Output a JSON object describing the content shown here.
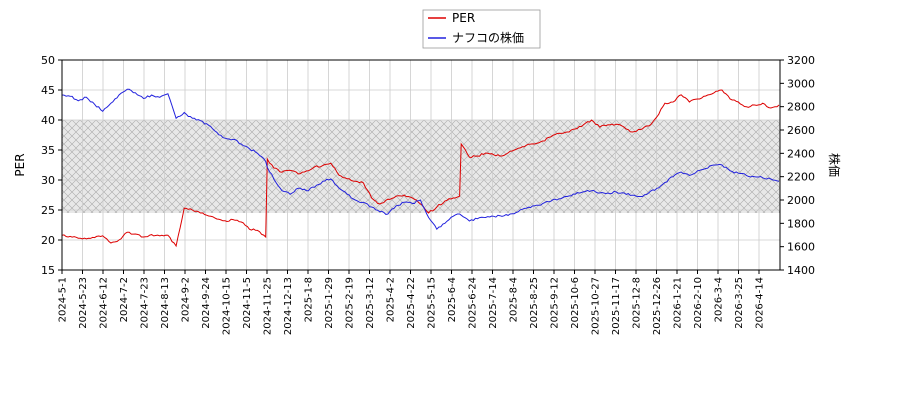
{
  "chart_data": {
    "type": "line",
    "title": "",
    "xlabel": "",
    "ylabel_left": "PER",
    "ylabel_right": "株価",
    "ylim_left": [
      15,
      50
    ],
    "ylim_right": [
      1400,
      3200
    ],
    "yticks_left": [
      "15",
      "20",
      "25",
      "30",
      "35",
      "40",
      "45",
      "50"
    ],
    "yticks_right": [
      "1400",
      "1600",
      "1800",
      "2000",
      "2200",
      "2400",
      "2600",
      "2800",
      "3000",
      "3200"
    ],
    "x_tick_labels": [
      "2024-5-1",
      "2024-5-23",
      "2024-6-12",
      "2024-7-2",
      "2024-7-23",
      "2024-8-13",
      "2024-9-2",
      "2024-9-24",
      "2024-10-15",
      "2024-11-5",
      "2024-11-25",
      "2024-12-13",
      "2025-1-8",
      "2025-1-29",
      "2025-2-19",
      "2025-3-12",
      "2025-4-2",
      "2025-4-22",
      "2025-5-15",
      "2025-6-4",
      "2025-6-24",
      "2025-7-14",
      "2025-8-4",
      "2025-8-25",
      "2025-9-12",
      "2025-10-6",
      "2025-10-27",
      "2025-11-17",
      "2025-12-8",
      "2025-12-26",
      "2026-1-21",
      "2026-2-10",
      "2026-3-4",
      "2026-3-25",
      "2026-4-14"
    ],
    "band": {
      "low": 24.5,
      "high": 40
    },
    "legend_position": "top-center",
    "grid": true,
    "series": [
      {
        "name": "PER",
        "axis": "left",
        "color": "#dd0000",
        "values": [
          [
            0,
            20.8
          ],
          [
            1,
            20.6
          ],
          [
            2,
            20.3
          ],
          [
            3,
            20.2
          ],
          [
            4,
            20.4
          ],
          [
            5,
            20.7
          ],
          [
            6,
            19.5
          ],
          [
            7,
            20.0
          ],
          [
            8,
            21.3
          ],
          [
            9,
            21.0
          ],
          [
            10,
            20.5
          ],
          [
            11,
            20.9
          ],
          [
            12,
            20.7
          ],
          [
            13,
            20.8
          ],
          [
            14,
            19.0
          ],
          [
            15,
            25.3
          ],
          [
            16,
            25.0
          ],
          [
            17,
            24.5
          ],
          [
            18,
            24.0
          ],
          [
            19,
            23.5
          ],
          [
            20,
            23.2
          ],
          [
            21,
            23.4
          ],
          [
            22,
            23.0
          ],
          [
            23,
            21.8
          ],
          [
            24,
            21.6
          ],
          [
            25,
            20.5
          ],
          [
            25.2,
            33.5
          ],
          [
            26,
            32.0
          ],
          [
            27,
            31.3
          ],
          [
            28,
            31.6
          ],
          [
            29,
            31.0
          ],
          [
            30,
            31.5
          ],
          [
            31,
            32.2
          ],
          [
            32,
            32.4
          ],
          [
            33,
            32.8
          ],
          [
            34,
            30.8
          ],
          [
            35,
            30.2
          ],
          [
            36,
            29.8
          ],
          [
            37,
            29.5
          ],
          [
            38,
            27.0
          ],
          [
            39,
            26.0
          ],
          [
            40,
            26.8
          ],
          [
            41,
            27.3
          ],
          [
            42,
            27.5
          ],
          [
            43,
            27.0
          ],
          [
            44,
            26.0
          ],
          [
            45,
            24.5
          ],
          [
            46,
            25.5
          ],
          [
            47,
            26.5
          ],
          [
            48,
            27.0
          ],
          [
            48.8,
            27.3
          ],
          [
            49,
            36.0
          ],
          [
            50,
            33.8
          ],
          [
            51,
            34.0
          ],
          [
            52,
            34.5
          ],
          [
            53,
            34.2
          ],
          [
            54,
            34.0
          ],
          [
            55,
            34.8
          ],
          [
            56,
            35.3
          ],
          [
            57,
            35.8
          ],
          [
            58,
            36.0
          ],
          [
            59,
            36.5
          ],
          [
            60,
            37.2
          ],
          [
            61,
            37.8
          ],
          [
            62,
            38.0
          ],
          [
            63,
            38.5
          ],
          [
            64,
            39.2
          ],
          [
            65,
            40.0
          ],
          [
            66,
            38.8
          ],
          [
            67,
            39.2
          ],
          [
            68,
            39.3
          ],
          [
            69,
            38.8
          ],
          [
            70,
            38.0
          ],
          [
            71,
            38.4
          ],
          [
            72,
            39.0
          ],
          [
            73,
            40.5
          ],
          [
            74,
            42.8
          ],
          [
            75,
            43.0
          ],
          [
            76,
            44.2
          ],
          [
            77,
            43.0
          ],
          [
            78,
            43.5
          ],
          [
            79,
            44.0
          ],
          [
            80,
            44.5
          ],
          [
            81,
            45.0
          ],
          [
            82,
            43.5
          ],
          [
            83,
            43.0
          ],
          [
            84,
            42.2
          ],
          [
            85,
            42.5
          ],
          [
            86,
            42.8
          ],
          [
            87,
            42.0
          ],
          [
            88,
            42.5
          ]
        ]
      },
      {
        "name": "ナフコの株価",
        "axis": "right",
        "color": "#2222dd",
        "values": [
          [
            0,
            2900
          ],
          [
            1,
            2890
          ],
          [
            2,
            2850
          ],
          [
            3,
            2880
          ],
          [
            4,
            2820
          ],
          [
            5,
            2760
          ],
          [
            6,
            2830
          ],
          [
            7,
            2900
          ],
          [
            8,
            2950
          ],
          [
            9,
            2920
          ],
          [
            10,
            2870
          ],
          [
            11,
            2900
          ],
          [
            12,
            2880
          ],
          [
            13,
            2910
          ],
          [
            14,
            2700
          ],
          [
            15,
            2750
          ],
          [
            16,
            2700
          ],
          [
            17,
            2680
          ],
          [
            18,
            2640
          ],
          [
            19,
            2580
          ],
          [
            20,
            2530
          ],
          [
            21,
            2520
          ],
          [
            22,
            2480
          ],
          [
            23,
            2440
          ],
          [
            24,
            2400
          ],
          [
            25,
            2330
          ],
          [
            25.2,
            2280
          ],
          [
            26,
            2180
          ],
          [
            27,
            2080
          ],
          [
            28,
            2050
          ],
          [
            29,
            2100
          ],
          [
            30,
            2080
          ],
          [
            31,
            2110
          ],
          [
            32,
            2160
          ],
          [
            33,
            2180
          ],
          [
            34,
            2100
          ],
          [
            35,
            2050
          ],
          [
            36,
            2000
          ],
          [
            37,
            1980
          ],
          [
            38,
            1940
          ],
          [
            39,
            1900
          ],
          [
            40,
            1880
          ],
          [
            41,
            1950
          ],
          [
            42,
            1980
          ],
          [
            43,
            1970
          ],
          [
            44,
            2000
          ],
          [
            45,
            1850
          ],
          [
            46,
            1750
          ],
          [
            47,
            1800
          ],
          [
            48,
            1860
          ],
          [
            48.8,
            1880
          ],
          [
            49,
            1870
          ],
          [
            50,
            1820
          ],
          [
            51,
            1840
          ],
          [
            52,
            1850
          ],
          [
            53,
            1860
          ],
          [
            54,
            1860
          ],
          [
            55,
            1880
          ],
          [
            56,
            1900
          ],
          [
            57,
            1930
          ],
          [
            58,
            1950
          ],
          [
            59,
            1970
          ],
          [
            60,
            1990
          ],
          [
            61,
            2010
          ],
          [
            62,
            2030
          ],
          [
            63,
            2050
          ],
          [
            64,
            2070
          ],
          [
            65,
            2080
          ],
          [
            66,
            2060
          ],
          [
            67,
            2060
          ],
          [
            68,
            2070
          ],
          [
            69,
            2060
          ],
          [
            70,
            2040
          ],
          [
            71,
            2030
          ],
          [
            72,
            2060
          ],
          [
            73,
            2100
          ],
          [
            74,
            2150
          ],
          [
            75,
            2200
          ],
          [
            76,
            2240
          ],
          [
            77,
            2210
          ],
          [
            78,
            2250
          ],
          [
            79,
            2270
          ],
          [
            80,
            2300
          ],
          [
            81,
            2300
          ],
          [
            82,
            2250
          ],
          [
            83,
            2230
          ],
          [
            84,
            2210
          ],
          [
            85,
            2200
          ],
          [
            86,
            2190
          ],
          [
            87,
            2180
          ],
          [
            88,
            2160
          ]
        ]
      }
    ]
  }
}
